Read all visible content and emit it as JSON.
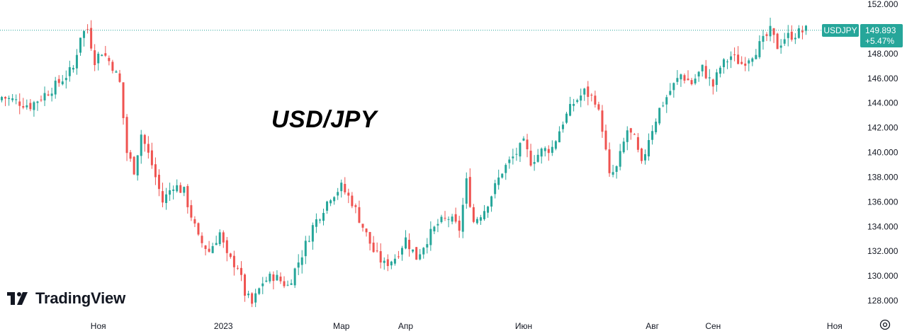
{
  "chart_data": {
    "type": "candlestick",
    "title": "USD/JPY",
    "symbol": "USDJPY",
    "last_price": "149.893",
    "change_pct": "+5.47%",
    "y_ticks": [
      "152.000",
      "150.000",
      "148.000",
      "146.000",
      "144.000",
      "142.000",
      "140.000",
      "138.000",
      "136.000",
      "134.000",
      "132.000",
      "130.000",
      "128.000"
    ],
    "ylim": [
      127,
      152
    ],
    "x_ticks": [
      {
        "label": "Ноя",
        "index": 27
      },
      {
        "label": "2023",
        "index": 62
      },
      {
        "label": "Мар",
        "index": 95
      },
      {
        "label": "Апр",
        "index": 113
      },
      {
        "label": "Июн",
        "index": 146
      },
      {
        "label": "Авг",
        "index": 182
      },
      {
        "label": "Сен",
        "index": 199
      },
      {
        "label": "Ноя",
        "index": 233
      }
    ],
    "grid": false,
    "up_color": "#26a69a",
    "down_color": "#ef5350",
    "close_path": [
      [
        0,
        144.5
      ],
      [
        8,
        143.8
      ],
      [
        15,
        145.4
      ],
      [
        20,
        146.8
      ],
      [
        22,
        149.5
      ],
      [
        24,
        150.0
      ],
      [
        26,
        147.5
      ],
      [
        28,
        148.2
      ],
      [
        31,
        147.0
      ],
      [
        33,
        145.6
      ],
      [
        35,
        140.0
      ],
      [
        37,
        138.6
      ],
      [
        39,
        141.5
      ],
      [
        42,
        139.0
      ],
      [
        45,
        136.0
      ],
      [
        48,
        137.4
      ],
      [
        51,
        136.8
      ],
      [
        55,
        133.0
      ],
      [
        58,
        132.0
      ],
      [
        61,
        133.5
      ],
      [
        63,
        131.5
      ],
      [
        66,
        130.8
      ],
      [
        68,
        128.6
      ],
      [
        70,
        127.7
      ],
      [
        73,
        129.5
      ],
      [
        76,
        130.0
      ],
      [
        80,
        129.2
      ],
      [
        84,
        131.8
      ],
      [
        87,
        134.0
      ],
      [
        90,
        135.5
      ],
      [
        92,
        136.5
      ],
      [
        95,
        137.2
      ],
      [
        98,
        136.0
      ],
      [
        101,
        134.0
      ],
      [
        104,
        132.0
      ],
      [
        107,
        130.9
      ],
      [
        110,
        131.5
      ],
      [
        113,
        133.0
      ],
      [
        116,
        131.5
      ],
      [
        119,
        133.0
      ],
      [
        122,
        134.2
      ],
      [
        125,
        134.7
      ],
      [
        128,
        133.8
      ],
      [
        130,
        137.6
      ],
      [
        132,
        134.4
      ],
      [
        135,
        135.4
      ],
      [
        138,
        137.2
      ],
      [
        140,
        138.5
      ],
      [
        143,
        139.6
      ],
      [
        146,
        140.7
      ],
      [
        148,
        139.3
      ],
      [
        151,
        140.1
      ],
      [
        154,
        140.4
      ],
      [
        157,
        142.5
      ],
      [
        160,
        144.0
      ],
      [
        163,
        144.9
      ],
      [
        166,
        144.3
      ],
      [
        168,
        142.0
      ],
      [
        170,
        138.0
      ],
      [
        172,
        138.7
      ],
      [
        175,
        141.8
      ],
      [
        177,
        141.0
      ],
      [
        179,
        138.9
      ],
      [
        181,
        141.2
      ],
      [
        184,
        143.5
      ],
      [
        187,
        145.0
      ],
      [
        190,
        146.3
      ],
      [
        193,
        145.6
      ],
      [
        196,
        146.8
      ],
      [
        199,
        145.4
      ],
      [
        201,
        146.9
      ],
      [
        204,
        147.8
      ],
      [
        207,
        147.2
      ],
      [
        210,
        148.0
      ],
      [
        213,
        149.0
      ],
      [
        215,
        149.8
      ],
      [
        217,
        148.6
      ],
      [
        219,
        149.3
      ],
      [
        222,
        149.6
      ],
      [
        225,
        149.9
      ]
    ]
  }
}
